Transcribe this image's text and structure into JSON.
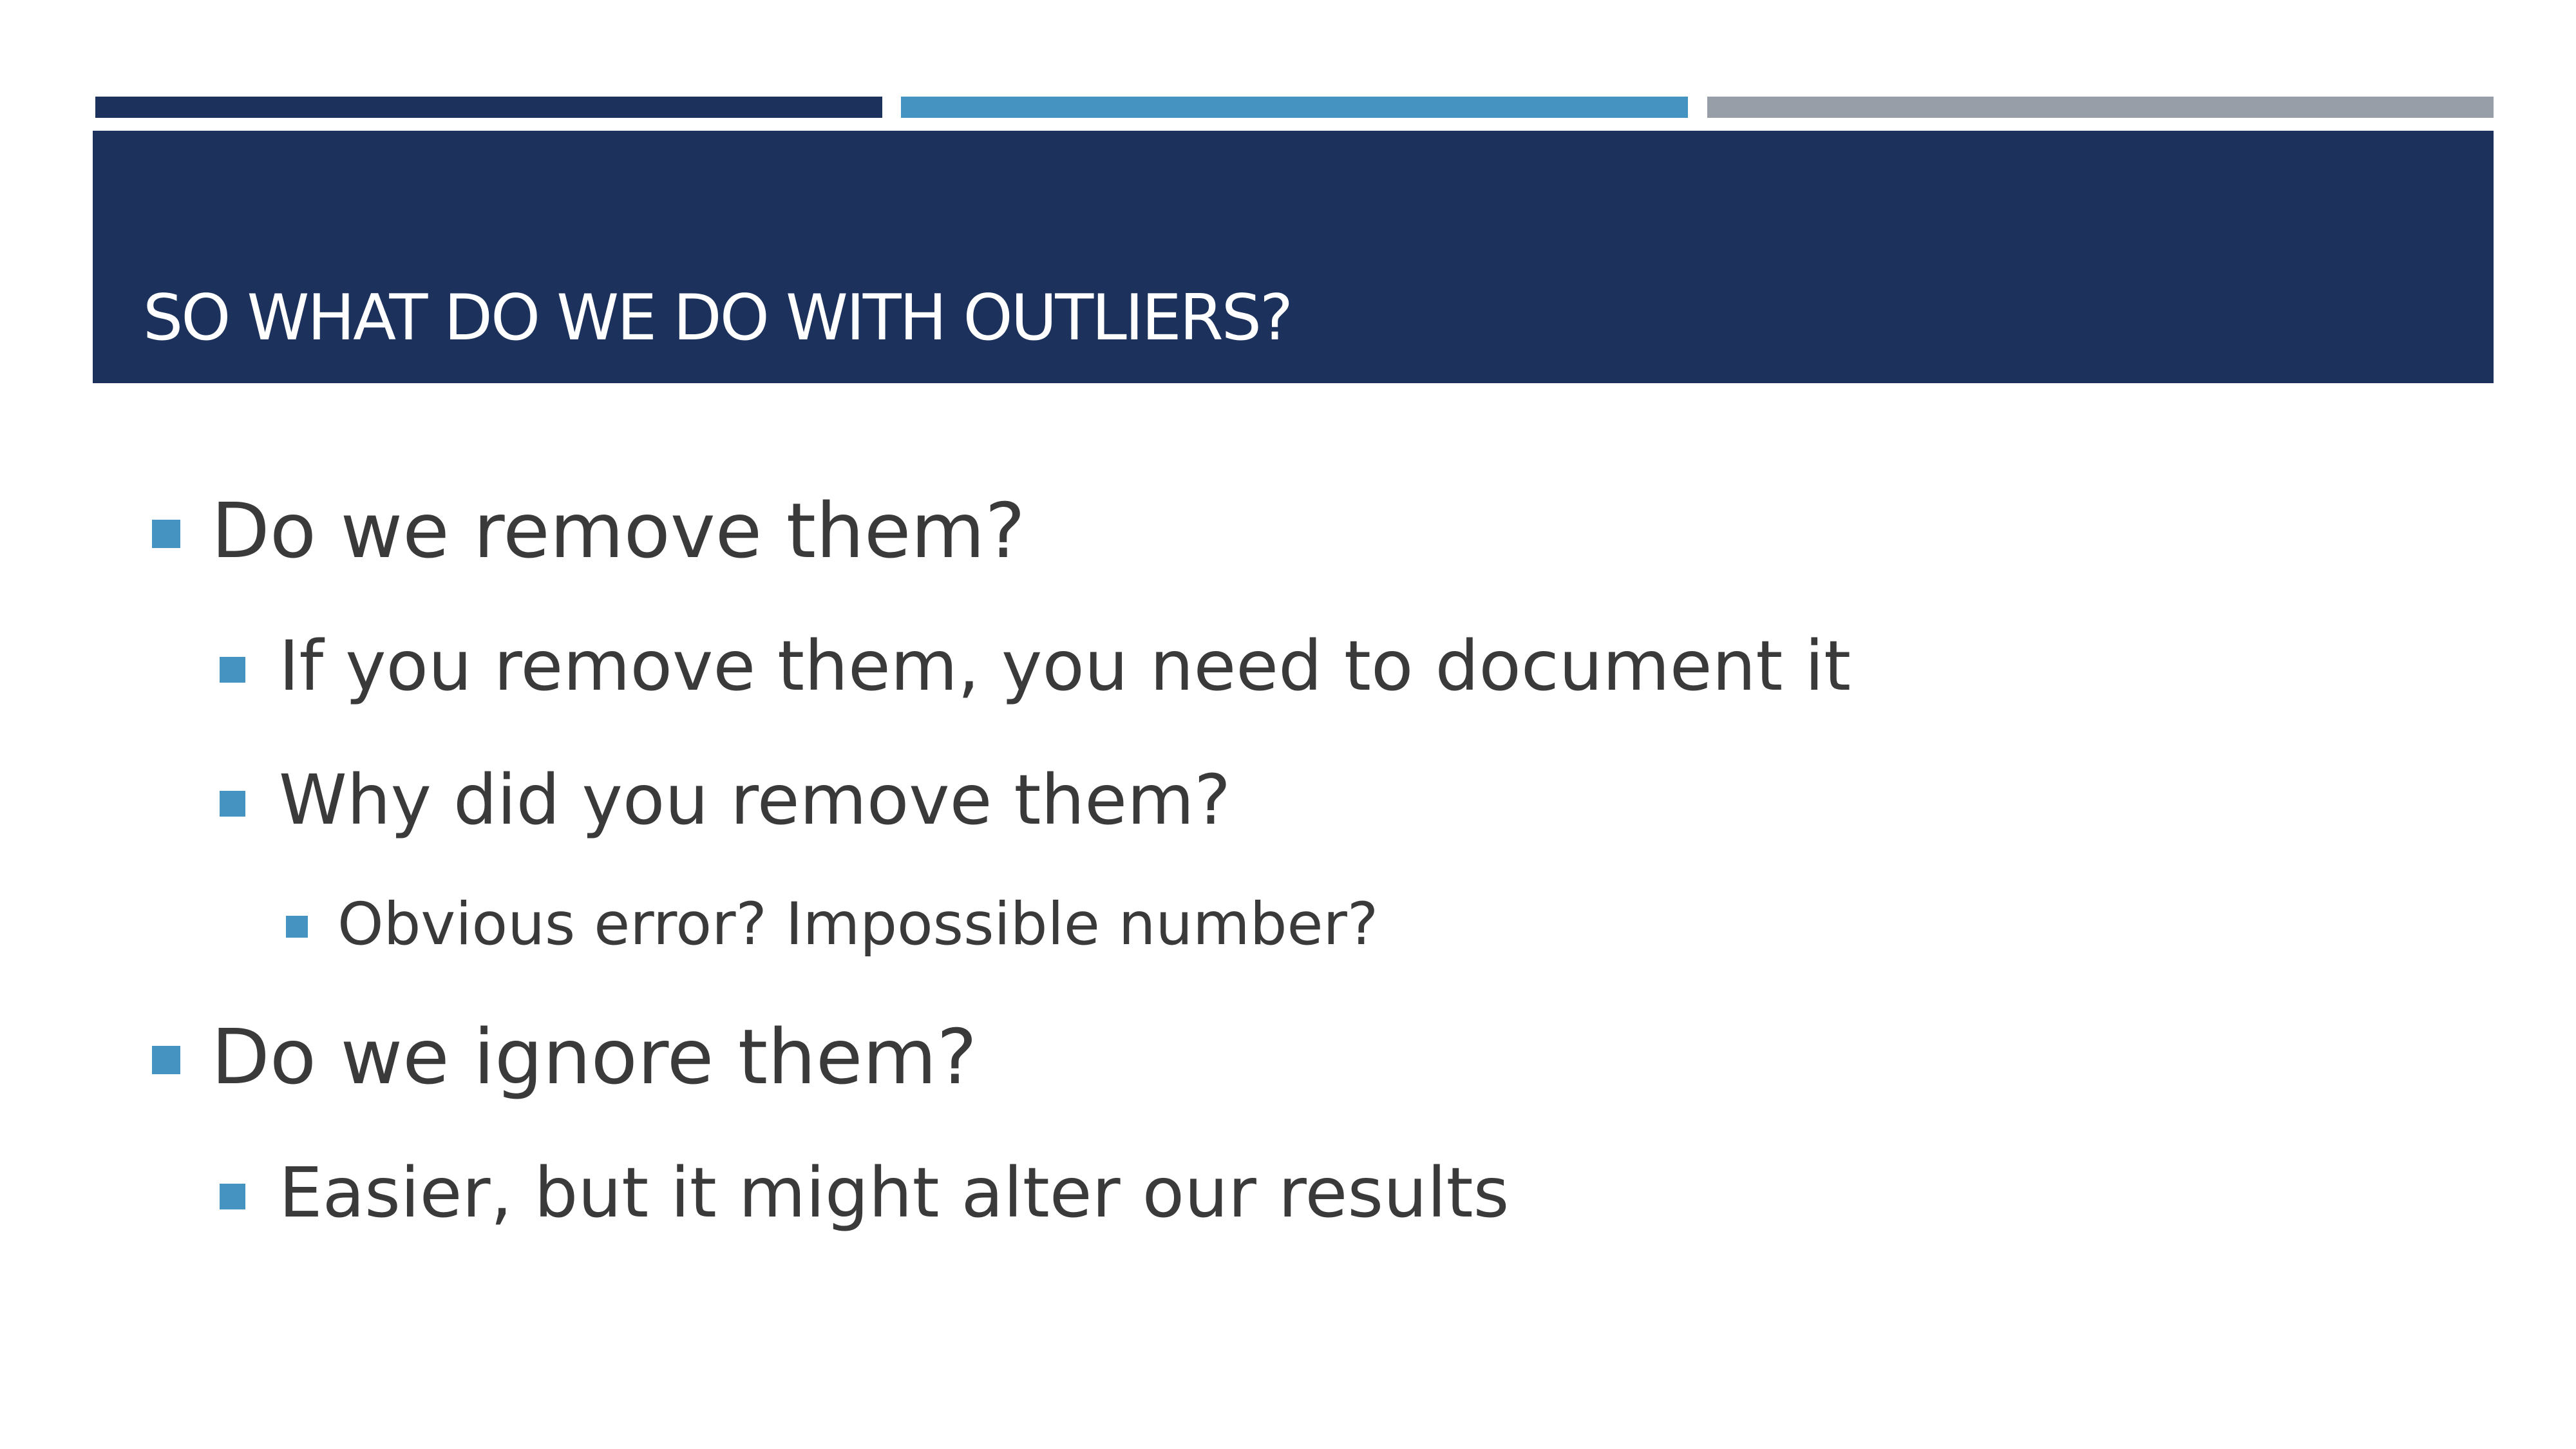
{
  "slide": {
    "title": "SO WHAT DO WE DO WITH OUTLIERS?",
    "colors": {
      "navy": "#1c325d",
      "blue": "#4593c0",
      "gray": "#979ea7",
      "text": "#3a3a3a"
    },
    "bullets": [
      {
        "level": 1,
        "text": "Do we remove them?"
      },
      {
        "level": 2,
        "text": "If you remove them, you need to document it"
      },
      {
        "level": 2,
        "text": "Why did you remove them?"
      },
      {
        "level": 3,
        "text": "Obvious error? Impossible number?"
      },
      {
        "level": 1,
        "text": "Do we ignore them?"
      },
      {
        "level": 2,
        "text": "Easier, but it might alter our results"
      }
    ]
  }
}
